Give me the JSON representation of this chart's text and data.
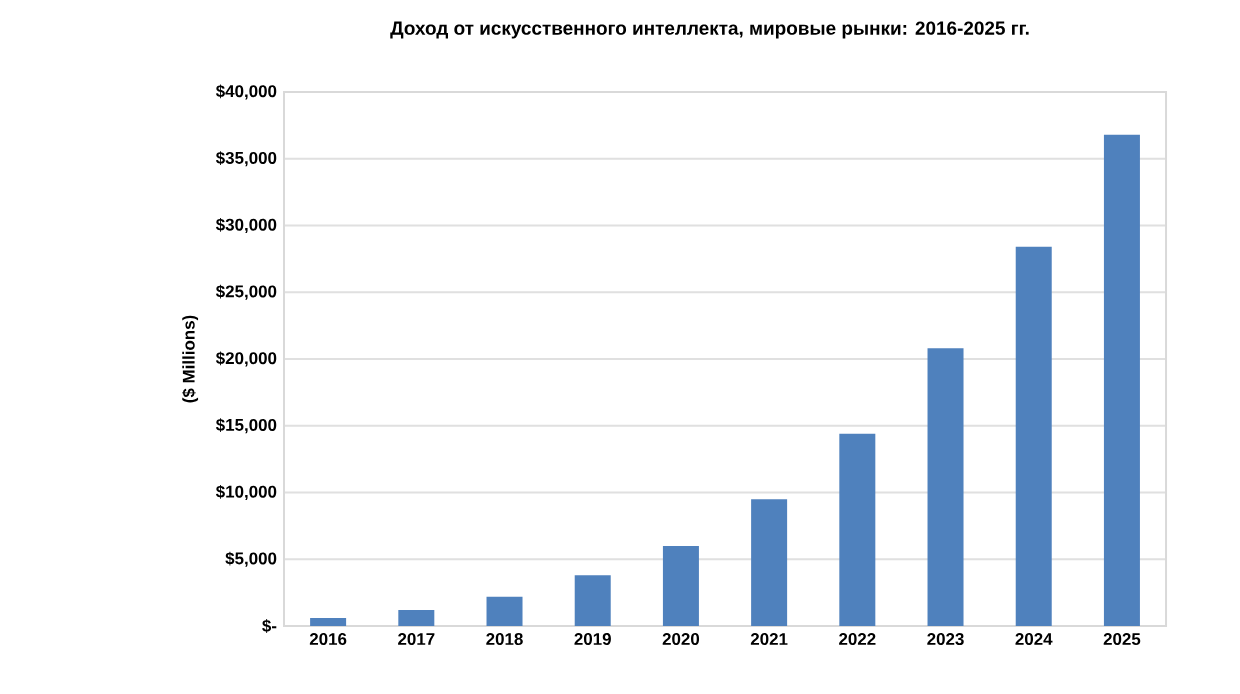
{
  "chart_data": {
    "type": "bar",
    "title": "Доход от искусственного интеллекта, мировые рынки: 2016-2025 гг.",
    "ylabel": "($ Millions)",
    "categories": [
      "2016",
      "2017",
      "2018",
      "2019",
      "2020",
      "2021",
      "2022",
      "2023",
      "2024",
      "2025"
    ],
    "values": [
      600,
      1200,
      2200,
      3800,
      6000,
      9500,
      14400,
      20800,
      28400,
      36800
    ],
    "color": "#4f81bd",
    "ylim": [
      0,
      40000
    ],
    "yticks": [
      {
        "value": 0,
        "label": "$-"
      },
      {
        "value": 5000,
        "label": "$5,000"
      },
      {
        "value": 10000,
        "label": "$10,000"
      },
      {
        "value": 15000,
        "label": "$15,000"
      },
      {
        "value": 20000,
        "label": "$20,000"
      },
      {
        "value": 25000,
        "label": "$25,000"
      },
      {
        "value": 30000,
        "label": "$30,000"
      },
      {
        "value": 35000,
        "label": "$35,000"
      },
      {
        "value": 40000,
        "label": "$40,000"
      }
    ],
    "grid": "y"
  }
}
